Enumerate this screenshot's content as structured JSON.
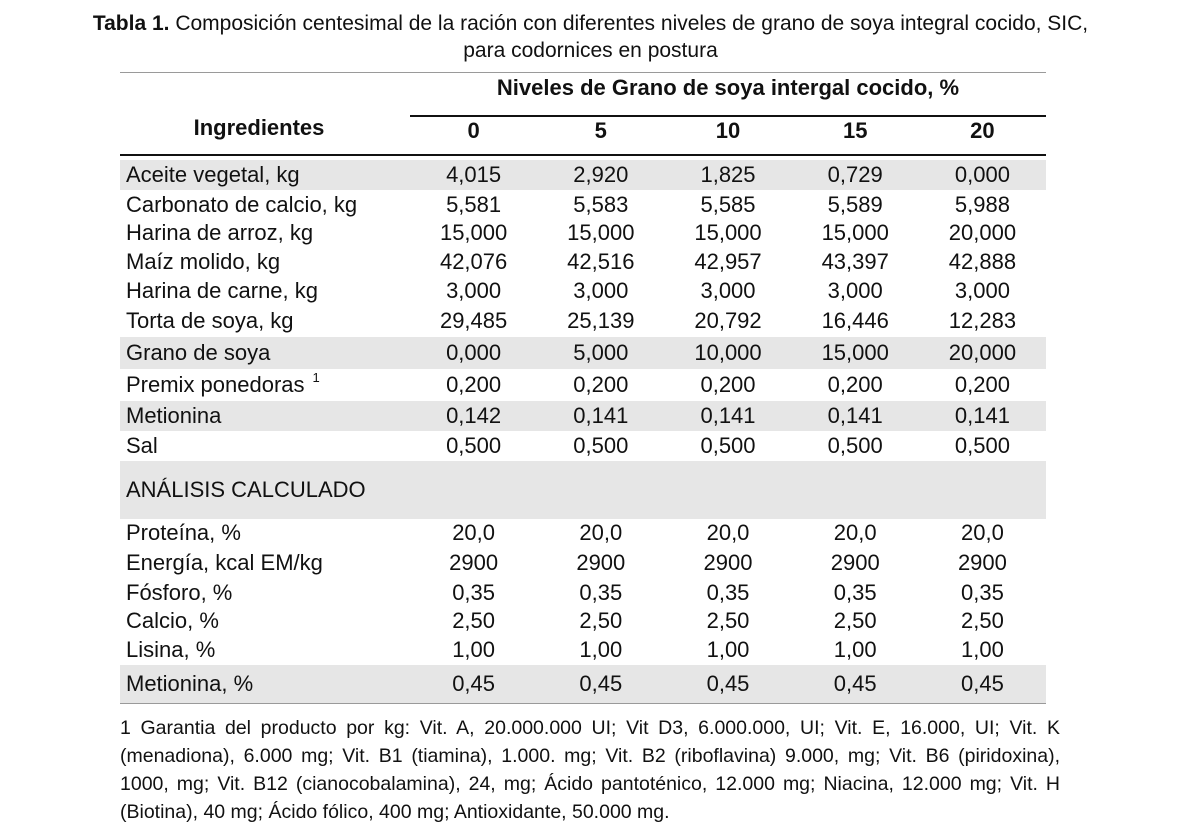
{
  "caption": {
    "label": "Tabla 1.",
    "text": "Composición centesimal de la ración con diferentes niveles de grano de soya integral cocido, SIC,",
    "text_line2": "para codornices en postura"
  },
  "table": {
    "header_ingredients": "Ingredientes",
    "header_levels": "Niveles de Grano de soya intergal cocido, %",
    "levels": [
      "0",
      "5",
      "10",
      "15",
      "20"
    ],
    "rows": [
      {
        "name": "Aceite  vegetal, kg",
        "values": [
          "4,015",
          "2,920",
          "1,825",
          "0,729",
          "0,000"
        ]
      },
      {
        "name": "Carbonato de calcio, kg",
        "values": [
          "5,581",
          "5,583",
          "5,585",
          "5,589",
          "5,988"
        ]
      },
      {
        "name": "Harina de arroz, kg",
        "values": [
          "15,000",
          "15,000",
          "15,000",
          "15,000",
          "20,000"
        ]
      },
      {
        "name": "Maíz molido, kg",
        "values": [
          "42,076",
          "42,516",
          "42,957",
          "43,397",
          "42,888"
        ]
      },
      {
        "name": "Harina de carne, kg",
        "values": [
          "3,000",
          "3,000",
          "3,000",
          "3,000",
          "3,000"
        ]
      },
      {
        "name": "Torta de soya, kg",
        "values": [
          "29,485",
          "25,139",
          "20,792",
          "16,446",
          "12,283"
        ]
      },
      {
        "name": "Grano de soya",
        "values": [
          "0,000",
          "5,000",
          "10,000",
          "15,000",
          "20,000"
        ]
      },
      {
        "name": "Premix ponedoras",
        "sup": "1",
        "values": [
          "0,200",
          "0,200",
          "0,200",
          "0,200",
          "0,200"
        ]
      },
      {
        "name": "Metionina",
        "values": [
          "0,142",
          "0,141",
          "0,141",
          "0,141",
          "0,141"
        ]
      },
      {
        "name": "Sal",
        "values": [
          "0,500",
          "0,500",
          "0,500",
          "0,500",
          "0,500"
        ]
      },
      {
        "name": "ANÁLISIS CALCULADO",
        "section": true,
        "values": []
      },
      {
        "name": "Proteína, %",
        "values": [
          "20,0",
          "20,0",
          "20,0",
          "20,0",
          "20,0"
        ]
      },
      {
        "name": "Energía, kcal EM/kg",
        "values": [
          "2900",
          "2900",
          "2900",
          "2900",
          "2900"
        ]
      },
      {
        "name": "Fósforo, %",
        "values": [
          "0,35",
          "0,35",
          "0,35",
          "0,35",
          "0,35"
        ]
      },
      {
        "name": "Calcio, %",
        "values": [
          "2,50",
          "2,50",
          "2,50",
          "2,50",
          "2,50"
        ]
      },
      {
        "name": "Lisina, %",
        "values": [
          "1,00",
          "1,00",
          "1,00",
          "1,00",
          "1,00"
        ]
      },
      {
        "name": "Metionina, %",
        "values": [
          "0,45",
          "0,45",
          "0,45",
          "0,45",
          "0,45"
        ]
      }
    ]
  },
  "footnote": "1 Garantia del producto  por kg: Vit. A, 20.000.000 UI; Vit D3, 6.000.000, UI; Vit. E, 16.000, UI; Vit. K (menadiona), 6.000 mg; Vit. B1 (tiamina), 1.000. mg; Vit. B2 (riboflavina) 9.000, mg; Vit. B6 (piridoxina), 1000, mg; Vit. B12 (cianocobalamina), 24, mg; Ácido pantoténico, 12.000 mg; Niacina, 12.000 mg; Vit. H (Biotina), 40 mg; Ácido fólico, 400 mg; Antioxidante, 50.000 mg.",
  "colors": {
    "row_shade": "#e6e6e6",
    "rule": "#111111",
    "light_rule": "#9a9a9a"
  }
}
